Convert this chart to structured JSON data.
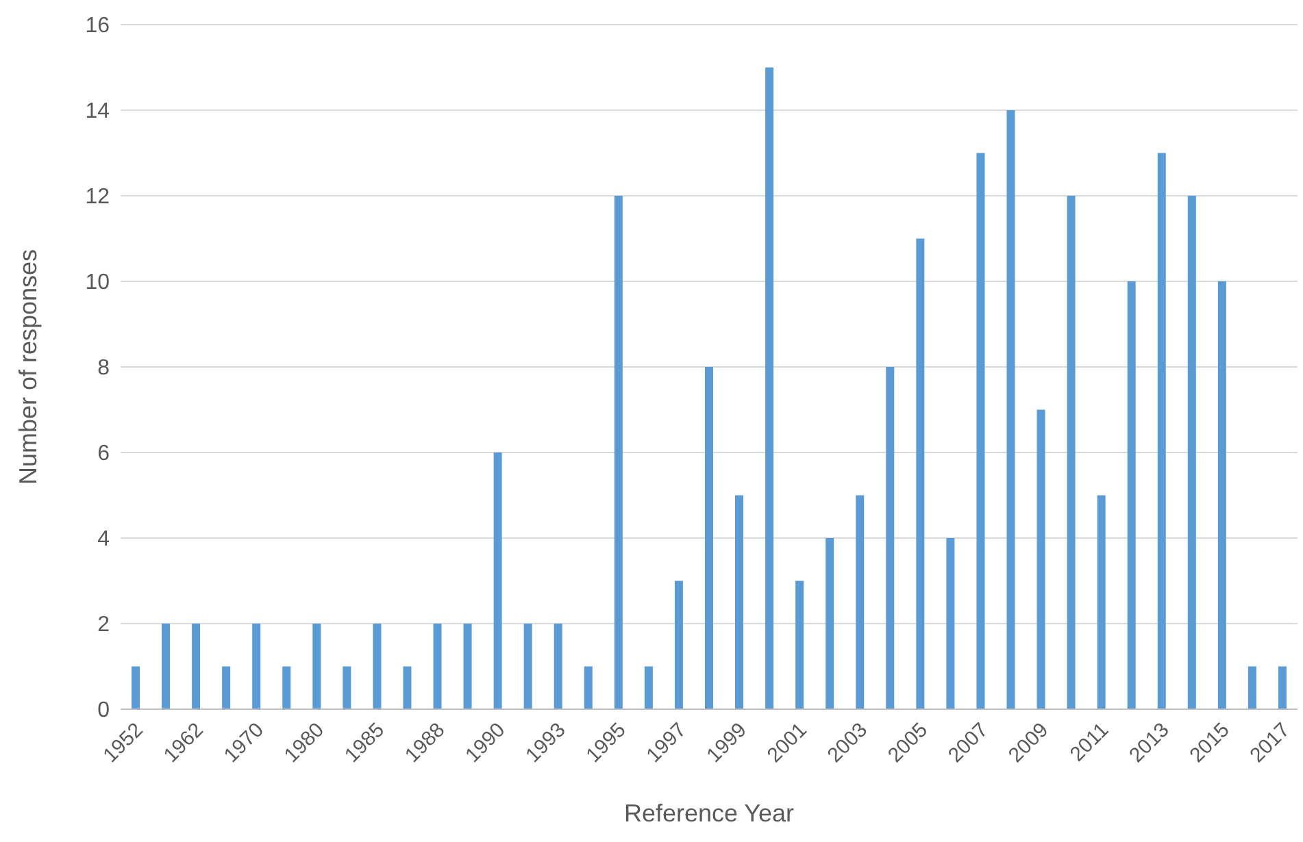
{
  "chart_data": {
    "type": "bar",
    "xlabel": "Reference Year",
    "ylabel": "Number of responses",
    "categories": [
      "1952",
      null,
      "1962",
      null,
      "1970",
      null,
      "1980",
      null,
      "1985",
      null,
      "1988",
      null,
      "1990",
      null,
      "1993",
      null,
      "1995",
      null,
      "1997",
      null,
      "1999",
      null,
      "2001",
      null,
      "2003",
      null,
      "2005",
      null,
      "2007",
      null,
      "2009",
      null,
      "2011",
      null,
      "2013",
      null,
      "2015",
      null,
      "2017"
    ],
    "values": [
      1,
      2,
      2,
      1,
      2,
      1,
      2,
      1,
      2,
      1,
      2,
      2,
      6,
      2,
      2,
      1,
      12,
      1,
      3,
      8,
      5,
      15,
      3,
      4,
      5,
      8,
      11,
      4,
      13,
      14,
      7,
      12,
      5,
      10,
      13,
      12,
      10,
      1,
      1
    ],
    "color": "#5b9bd5",
    "ylim": [
      0,
      16
    ],
    "yticks": [
      0,
      2,
      4,
      6,
      8,
      10,
      12,
      14,
      16
    ],
    "grid": "y",
    "legend": false
  }
}
